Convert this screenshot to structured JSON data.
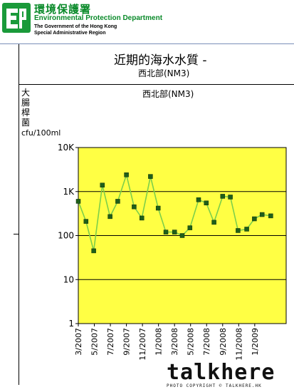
{
  "header": {
    "org_zh": "環境保護署",
    "org_en": "Environmental Protection Department",
    "gov_line1": "The Government of the Hong Kong",
    "gov_line2": "Special Administrative Region"
  },
  "page": {
    "title": "近期的海水水質 -",
    "subtitle": "西北部(NM3)"
  },
  "watermark": {
    "word": "talkhere",
    "sub": "PHOTO COPYRIGHT © TALKHERE.HK"
  },
  "colors": {
    "plot_bg": "#ffff44",
    "line": "#7ccf4a",
    "marker": "#1f5f1a",
    "logo_green": "#1a9a3a"
  },
  "chart_data": {
    "type": "line",
    "title": "西北部(NM3)",
    "ylabel": "大腸桿菌",
    "yunit": "cfu/100ml",
    "yscale": "log",
    "ylim": [
      1,
      10000
    ],
    "y_ticks": [
      "1",
      "10",
      "100",
      "1K",
      "10K"
    ],
    "gridlines": [
      10,
      100,
      1000
    ],
    "x_tick_labels": [
      "3/2007",
      "5/2007",
      "7/2007",
      "9/2007",
      "11/2007",
      "1/2008",
      "3/2008",
      "5/2008",
      "7/2008",
      "9/2008",
      "11/2008",
      "1/2009"
    ],
    "x_range": [
      2007.17,
      2009.33
    ],
    "series": [
      {
        "name": "",
        "x": [
          2007.17,
          2007.25,
          2007.33,
          2007.42,
          2007.5,
          2007.58,
          2007.67,
          2007.75,
          2007.83,
          2007.92,
          2008.0,
          2008.08,
          2008.17,
          2008.25,
          2008.33,
          2008.42,
          2008.5,
          2008.58,
          2008.67,
          2008.75,
          2008.83,
          2008.92,
          2009.0,
          2009.08,
          2009.17
        ],
        "values": [
          600,
          210,
          45,
          1400,
          270,
          600,
          2400,
          450,
          250,
          2200,
          420,
          120,
          120,
          100,
          150,
          650,
          550,
          200,
          780,
          750,
          130,
          140,
          240,
          300,
          280
        ]
      }
    ]
  }
}
